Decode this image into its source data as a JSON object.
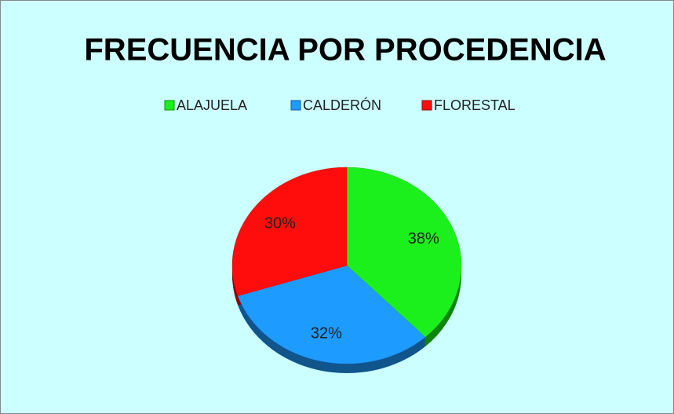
{
  "chart_data": {
    "type": "pie",
    "title": "FRECUENCIA POR PROCEDENCIA",
    "categories": [
      "ALAJUELA",
      "CALDERÓN",
      "FLORESTAL"
    ],
    "values": [
      38,
      32,
      30
    ],
    "value_labels": [
      "38%",
      "32%",
      "30%"
    ],
    "colors": [
      "#1cf01c",
      "#1e9bff",
      "#ff0d0d"
    ],
    "legend": "top"
  }
}
